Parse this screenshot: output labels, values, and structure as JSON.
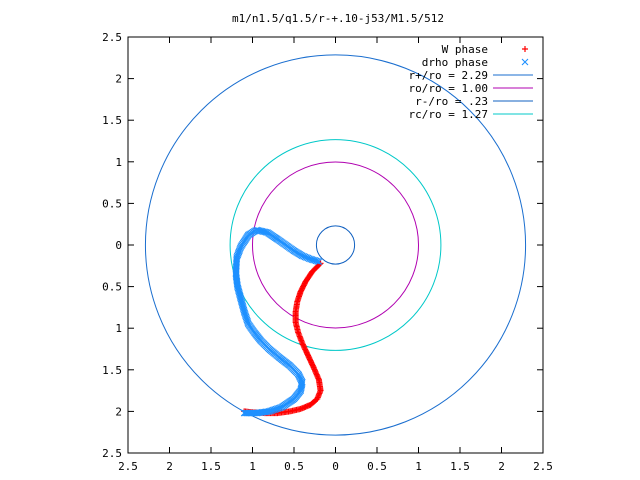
{
  "chart_data": {
    "type": "scatter",
    "title": "m1/n1.5/q1.5/r-+.10-j53/M1.5/512",
    "xlabel": "",
    "ylabel": "",
    "xlim": [
      -2.5,
      2.5
    ],
    "ylim": [
      -2.5,
      2.5
    ],
    "x_ticks": [
      -2.5,
      -2,
      -1.5,
      -1,
      -0.5,
      0,
      0.5,
      1,
      1.5,
      2,
      2.5
    ],
    "y_ticks": [
      -2.5,
      -2,
      -1.5,
      -1,
      -0.5,
      0,
      0.5,
      1,
      1.5,
      2,
      2.5
    ],
    "x_tick_labels": [
      "2.5",
      "2",
      "1.5",
      "1",
      "0.5",
      "0",
      "0.5",
      "1",
      "1.5",
      "2",
      "2.5"
    ],
    "y_tick_labels": [
      "2.5",
      "2",
      "1.5",
      "1",
      "0.5",
      "0",
      "0.5",
      "1",
      "1.5",
      "2",
      "2.5"
    ],
    "grid": false,
    "legend_position": "top-right",
    "series": [
      {
        "name": "W phase",
        "type": "points",
        "marker": "plus",
        "color": "#ff0000",
        "x": [
          -1.1,
          -1.0,
          -0.85,
          -0.7,
          -0.55,
          -0.42,
          -0.3,
          -0.22,
          -0.18,
          -0.2,
          -0.26,
          -0.33,
          -0.4,
          -0.45,
          -0.48,
          -0.48,
          -0.46,
          -0.42,
          -0.36,
          -0.28,
          -0.18
        ],
        "y": [
          -2.0,
          -2.01,
          -2.02,
          -2.02,
          -2.0,
          -1.97,
          -1.92,
          -1.85,
          -1.75,
          -1.62,
          -1.48,
          -1.33,
          -1.18,
          -1.05,
          -0.93,
          -0.8,
          -0.68,
          -0.56,
          -0.44,
          -0.32,
          -0.22
        ]
      },
      {
        "name": "drho phase",
        "type": "points",
        "marker": "cross",
        "color": "#1e90ff",
        "x": [
          -1.1,
          -0.95,
          -0.8,
          -0.65,
          -0.5,
          -0.42,
          -0.4,
          -0.45,
          -0.55,
          -0.68,
          -0.8,
          -0.9,
          -0.98,
          -1.05,
          -1.1,
          -1.14,
          -1.18,
          -1.2,
          -1.19,
          -1.14,
          -1.05,
          -0.95,
          -0.82,
          -0.7,
          -0.6,
          -0.5,
          -0.4,
          -0.3,
          -0.2
        ],
        "y": [
          -2.02,
          -2.02,
          -2.0,
          -1.95,
          -1.85,
          -1.75,
          -1.65,
          -1.55,
          -1.45,
          -1.35,
          -1.25,
          -1.15,
          -1.05,
          -0.95,
          -0.8,
          -0.65,
          -0.5,
          -0.35,
          -0.15,
          -0.02,
          0.12,
          0.18,
          0.15,
          0.07,
          0.0,
          -0.07,
          -0.13,
          -0.17,
          -0.2
        ]
      },
      {
        "name": "r+/ro = 2.29",
        "type": "circle",
        "radius": 2.29,
        "color": "#1a6ecf"
      },
      {
        "name": "ro/ro = 1.00",
        "type": "circle",
        "radius": 1.0,
        "color": "#b000b0"
      },
      {
        "name": "r-/ro = .23",
        "type": "circle",
        "radius": 0.23,
        "color": "#1060c0"
      },
      {
        "name": "rc/ro = 1.27",
        "type": "circle",
        "radius": 1.27,
        "color": "#00c8c8"
      }
    ]
  }
}
